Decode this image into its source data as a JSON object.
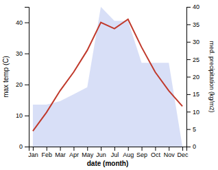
{
  "chart_data": {
    "type": "line",
    "xlabel": "date (month)",
    "ylabel": "max temp (C)",
    "y2label": "med. precipitation (kg/m2)",
    "categories": [
      "Jan",
      "Feb",
      "Mar",
      "Apr",
      "May",
      "Jun",
      "Jul",
      "Aug",
      "Sep",
      "Oct",
      "Nov",
      "Dec"
    ],
    "series": [
      {
        "type": "area",
        "axis": "y2",
        "color": "#b8c4f0",
        "values": [
          12,
          12,
          13,
          15,
          17,
          40,
          36,
          36,
          24,
          24,
          24,
          0
        ]
      },
      {
        "type": "line",
        "color": "#c0392b",
        "values": [
          5,
          11,
          18,
          24,
          31,
          40,
          38,
          41,
          32,
          24,
          18,
          13
        ]
      }
    ],
    "ylim": [
      0,
      45
    ],
    "yticks": [
      0,
      10,
      20,
      30,
      40
    ],
    "y2lim": [
      0,
      40
    ],
    "y2ticks": [
      0,
      5,
      10,
      15,
      20,
      25,
      30,
      35,
      40
    ],
    "grid": false
  }
}
